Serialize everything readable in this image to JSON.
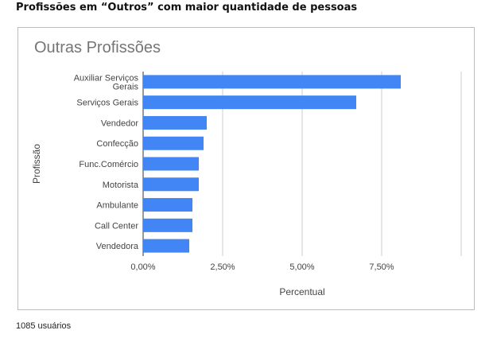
{
  "heading": "Profissões em “Outros” com maior quantidade de pessoas",
  "footer": "1085 usuários",
  "colors": {
    "bar": "#4285f4",
    "grid": "#cccccc",
    "text": "#444444",
    "title": "#757575"
  },
  "chart_data": {
    "type": "bar",
    "orientation": "horizontal",
    "title": "Outras Profissões",
    "xlabel": "Percentual",
    "ylabel": "Profissão",
    "categories": [
      [
        "Auxiliar Serviços",
        "Gerais"
      ],
      [
        "Serviços Gerais"
      ],
      [
        "Vendedor"
      ],
      [
        "Confecção"
      ],
      [
        "Func.Comércio"
      ],
      [
        "Motorista"
      ],
      [
        "Ambulante"
      ],
      [
        "Call Center"
      ],
      [
        "Vendedora"
      ]
    ],
    "values": [
      8.1,
      6.7,
      2.0,
      1.9,
      1.75,
      1.75,
      1.55,
      1.55,
      1.45
    ],
    "xlim": [
      0,
      10
    ],
    "xticks": [
      {
        "value": 0,
        "label": "0,00%"
      },
      {
        "value": 2.5,
        "label": "2,50%"
      },
      {
        "value": 5,
        "label": "5,00%"
      },
      {
        "value": 7.5,
        "label": "7,50%"
      }
    ],
    "gridlines": [
      0,
      2.5,
      5,
      7.5,
      10
    ],
    "grid": true,
    "legend": "none"
  }
}
